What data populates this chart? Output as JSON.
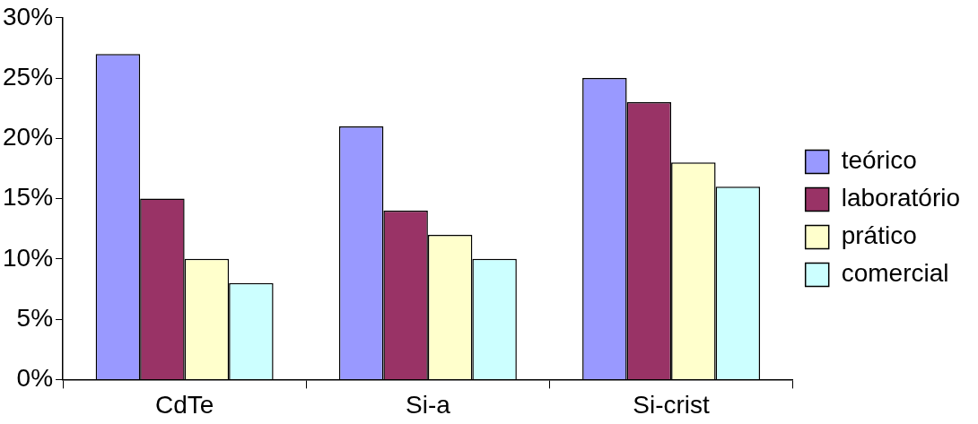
{
  "chart_data": {
    "type": "bar",
    "categories": [
      "CdTe",
      "Si-a",
      "Si-crist"
    ],
    "series": [
      {
        "name": "teórico",
        "color": "#9999ff",
        "values": [
          27,
          21,
          25
        ]
      },
      {
        "name": "laboratório",
        "color": "#993366",
        "values": [
          15,
          14,
          23
        ]
      },
      {
        "name": "prático",
        "color": "#ffffcc",
        "values": [
          10,
          12,
          18
        ]
      },
      {
        "name": "comercial",
        "color": "#ccffff",
        "values": [
          8,
          10,
          16
        ]
      }
    ],
    "ylim": [
      0,
      30
    ],
    "yticks": [
      {
        "value": 0,
        "label": "0%"
      },
      {
        "value": 5,
        "label": "5%"
      },
      {
        "value": 10,
        "label": "10%"
      },
      {
        "value": 15,
        "label": "15%"
      },
      {
        "value": 20,
        "label": "20%"
      },
      {
        "value": 25,
        "label": "25%"
      },
      {
        "value": 30,
        "label": "30%"
      }
    ],
    "grid": false,
    "legend": "right"
  }
}
